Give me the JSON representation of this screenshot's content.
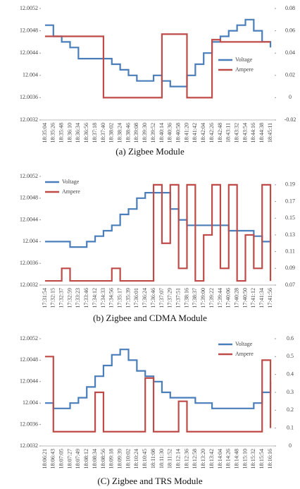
{
  "chart_data": [
    {
      "type": "line",
      "caption": "(a)  Zigbee Module",
      "categories": [
        "18:35:04",
        "18:35:26",
        "18:35:48",
        "18:36:10",
        "18:36:34",
        "18:36:56",
        "18:37:18",
        "18:37:40",
        "18:38:02",
        "18:38:24",
        "18:38:46",
        "18:39:08",
        "18:39:30",
        "18:39:52",
        "18:40:14",
        "18:40:36",
        "18:40:58",
        "18:41:20",
        "18:41:42",
        "18:42:04",
        "18:42:26",
        "18:42:48",
        "18:43:11",
        "18:43:32",
        "18:43:54",
        "18:44:16",
        "18:44:38",
        "18:45:11"
      ],
      "series": [
        {
          "name": "Voltage",
          "color": "#4a7ebb",
          "axis": "y",
          "values": [
            12.0049,
            12.0047,
            12.0046,
            12.0045,
            12.0043,
            12.0043,
            12.0043,
            12.0043,
            12.0042,
            12.0041,
            12.004,
            12.0039,
            12.0039,
            12.004,
            12.0039,
            12.0038,
            12.0038,
            12.004,
            12.0042,
            12.0044,
            12.0046,
            12.0047,
            12.0048,
            12.0049,
            12.005,
            12.0048,
            12.0046,
            12.0045
          ]
        },
        {
          "name": "Ampere",
          "color": "#be4b48",
          "axis": "y2",
          "values": [
            0.055,
            0.055,
            0.055,
            0.055,
            0.055,
            0.055,
            0.055,
            0,
            0,
            0,
            0,
            0,
            0,
            0,
            0.057,
            0.057,
            0.057,
            0,
            0,
            0,
            0.052,
            0.05,
            0.05,
            0.05,
            0.05,
            0.05,
            0.05,
            0.05
          ]
        }
      ],
      "ylim": [
        12.0032,
        12.0052
      ],
      "yticks": [
        12.0032,
        12.0036,
        12.004,
        12.0044,
        12.0048,
        12.0052
      ],
      "y2lim": [
        -0.02,
        0.08
      ],
      "y2ticks": [
        -0.02,
        0,
        0.02,
        0.04,
        0.06,
        0.08
      ],
      "legend": "right"
    },
    {
      "type": "line",
      "caption": "(b)  Zigbee and CDMA Module",
      "categories": [
        "17:31:54",
        "17:32:15",
        "17:32:37",
        "17:32:59",
        "17:33:23",
        "17:33:46",
        "17:34:12",
        "17:34:33",
        "17:34:56",
        "17:35:17",
        "17:35:39",
        "17:36:01",
        "17:36:24",
        "17:36:46",
        "17:37:07",
        "17:37:29",
        "17:37:51",
        "17:38:16",
        "17:38:37",
        "17:39:00",
        "17:39:22",
        "17:39:44",
        "17:40:06",
        "17:40:28",
        "17:40:50",
        "17:41:12",
        "17:41:34",
        "17:41:56"
      ],
      "series": [
        {
          "name": "Voltage",
          "color": "#4a7ebb",
          "axis": "y",
          "values": [
            12.004,
            12.004,
            12.004,
            12.0039,
            12.0039,
            12.004,
            12.0041,
            12.0042,
            12.0043,
            12.0045,
            12.0046,
            12.0048,
            12.0049,
            12.0049,
            12.0049,
            12.0046,
            12.0044,
            12.0043,
            12.0043,
            12.0043,
            12.0043,
            12.0043,
            12.0042,
            12.0042,
            12.0042,
            12.0041,
            12.004,
            12.0041
          ]
        },
        {
          "name": "Ampere",
          "color": "#be4b48",
          "axis": "y2",
          "values": [
            0.075,
            0.075,
            0.09,
            0.075,
            0.075,
            0.075,
            0.075,
            0.075,
            0.09,
            0.075,
            0.075,
            0.075,
            0.075,
            0.19,
            0.12,
            0.19,
            0.09,
            0.19,
            0.075,
            0.13,
            0.19,
            0.09,
            0.19,
            0.075,
            0.13,
            0.09,
            0.19,
            0.075
          ]
        }
      ],
      "ylim": [
        12.0032,
        12.0052
      ],
      "yticks": [
        12.0032,
        12.0036,
        12.004,
        12.0044,
        12.0048,
        12.0052
      ],
      "y2lim": [
        0.07,
        0.2
      ],
      "y2ticks": [
        0.07,
        0.09,
        0.11,
        0.13,
        0.15,
        0.17,
        0.19
      ],
      "legend": "upper left"
    },
    {
      "type": "line",
      "caption": "(C)  Zigbee and TRS Module",
      "categories": [
        "18:06:21",
        "18:06:43",
        "18:07:05",
        "18:07:27",
        "18:07:49",
        "18:08:12",
        "18:08:34",
        "18:08:56",
        "18:09:18",
        "18:09:39",
        "18:10:02",
        "18:10:24",
        "18:10:45",
        "18:11:08",
        "18:11:30",
        "18:11:52",
        "18:12:14",
        "18:12:36",
        "18:12:58",
        "18:13:20",
        "18:13:42",
        "18:14:04",
        "18:14:26",
        "18:14:48",
        "18:15:10",
        "18:15:32",
        "18:15:54",
        "18:16:16"
      ],
      "series": [
        {
          "name": "Voltage",
          "color": "#4a7ebb",
          "axis": "y",
          "values": [
            12.004,
            12.0039,
            12.0039,
            12.004,
            12.0041,
            12.0043,
            12.0045,
            12.0047,
            12.0049,
            12.005,
            12.0048,
            12.0046,
            12.0045,
            12.0044,
            12.0042,
            12.0041,
            12.0041,
            12.0041,
            12.004,
            12.004,
            12.0039,
            12.0039,
            12.0039,
            12.0039,
            12.0039,
            12.004,
            12.0042,
            12.0044
          ]
        },
        {
          "name": "Ampere",
          "color": "#be4b48",
          "axis": "y2",
          "values": [
            0.5,
            0.08,
            0.08,
            0.08,
            0.08,
            0.08,
            0.3,
            0.08,
            0.08,
            0.08,
            0.08,
            0.08,
            0.38,
            0.08,
            0.08,
            0.08,
            0.25,
            0.08,
            0.08,
            0.08,
            0.08,
            0.08,
            0.08,
            0.08,
            0.08,
            0.08,
            0.48,
            0.1
          ]
        }
      ],
      "ylim": [
        12.0032,
        12.0052
      ],
      "yticks": [
        12.0032,
        12.0036,
        12.004,
        12.0044,
        12.0048,
        12.0052
      ],
      "y2lim": [
        0,
        0.6
      ],
      "y2ticks": [
        0,
        0.1,
        0.2,
        0.3,
        0.4,
        0.5,
        0.6
      ],
      "legend": "upper right"
    }
  ]
}
